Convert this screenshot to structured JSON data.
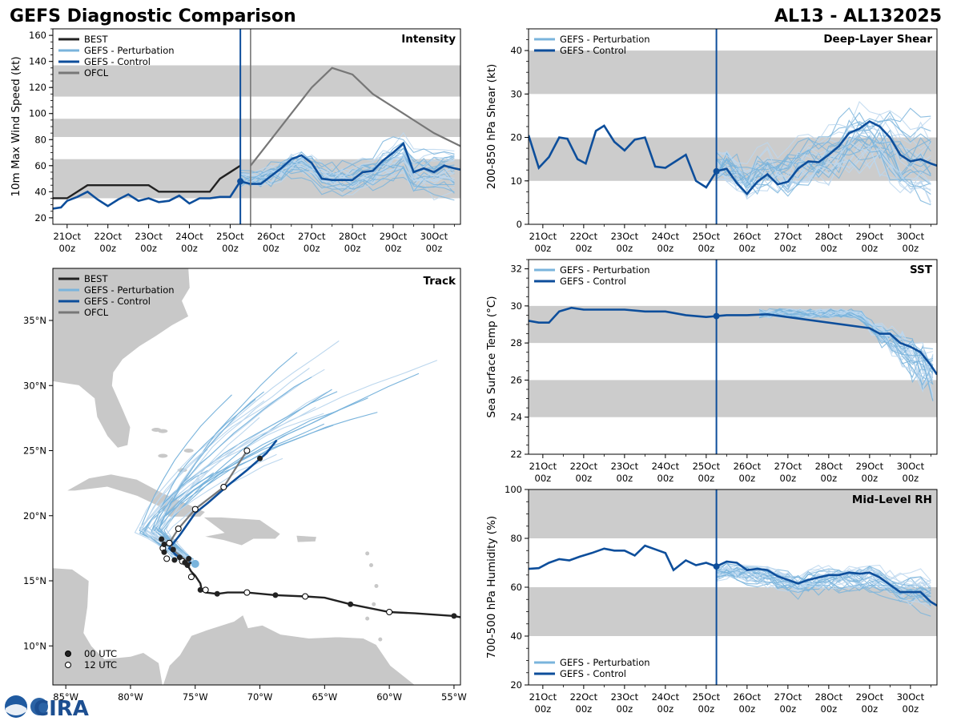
{
  "figure": {
    "title_left": "GEFS Diagnostic Comparison",
    "title_right": "AL13 - AL132025",
    "logo_text": "CIRA"
  },
  "colors": {
    "best": "#222222",
    "perturbation": "#7ab4dc",
    "perturbation_light": "#bcd7ee",
    "control": "#0d4e9b",
    "ofcl": "#777777",
    "band": "#cccccc",
    "land": "#c8c8c8",
    "init_line": "#0d4e9b"
  },
  "time_axis": {
    "tick_labels": [
      [
        "21Oct",
        "00z"
      ],
      [
        "22Oct",
        "00z"
      ],
      [
        "23Oct",
        "00z"
      ],
      [
        "24Oct",
        "00z"
      ],
      [
        "25Oct",
        "00z"
      ],
      [
        "26Oct",
        "00z"
      ],
      [
        "27Oct",
        "00z"
      ],
      [
        "28Oct",
        "00z"
      ],
      [
        "29Oct",
        "00z"
      ],
      [
        "30Oct",
        "00z"
      ]
    ],
    "tick_days": [
      1,
      2,
      3,
      4,
      5,
      6,
      7,
      8,
      9,
      10
    ],
    "range_days": [
      0.65,
      10.65
    ],
    "init_day": 5.25
  },
  "chart_data": [
    {
      "id": "intensity",
      "type": "line",
      "title": "Intensity",
      "ylabel": "10m Max Wind Speed (kt)",
      "ylim": [
        15,
        165
      ],
      "yticks": [
        20,
        40,
        60,
        80,
        100,
        120,
        140,
        160
      ],
      "bands": [
        [
          35,
          65
        ],
        [
          82,
          96
        ],
        [
          113,
          137
        ]
      ],
      "legend": [
        "BEST",
        "GEFS - Perturbation",
        "GEFS - Control",
        "OFCL"
      ],
      "ofcl_init_day": 5.5,
      "best": {
        "x": [
          0.65,
          1.0,
          1.5,
          2.0,
          2.5,
          3.0,
          3.25,
          3.5,
          4.0,
          4.5,
          4.75,
          5.0,
          5.25
        ],
        "y": [
          35,
          35,
          45,
          45,
          45,
          45,
          40,
          40,
          40,
          40,
          50,
          55,
          60
        ]
      },
      "ofcl": {
        "x": [
          5.5,
          6.0,
          6.5,
          7.0,
          7.5,
          8.0,
          8.5,
          9.0,
          9.5,
          10.0,
          10.65
        ],
        "y": [
          60,
          80,
          100,
          120,
          135,
          130,
          115,
          105,
          95,
          85,
          75
        ]
      },
      "control": {
        "x": [
          0.65,
          0.85,
          1.0,
          1.25,
          1.5,
          1.75,
          2.0,
          2.25,
          2.5,
          2.75,
          3.0,
          3.25,
          3.5,
          3.75,
          4.0,
          4.25,
          4.5,
          4.75,
          5.0,
          5.25,
          5.5,
          5.75,
          6.0,
          6.25,
          6.5,
          6.75,
          7.0,
          7.25,
          7.5,
          7.75,
          8.0,
          8.25,
          8.5,
          8.75,
          9.0,
          9.25,
          9.5,
          9.75,
          10.0,
          10.25,
          10.5,
          10.65
        ],
        "y": [
          27,
          28,
          33,
          36,
          40,
          34,
          29,
          34,
          38,
          33,
          35,
          32,
          33,
          37,
          31,
          35,
          35,
          36,
          36,
          48,
          46,
          46,
          52,
          58,
          65,
          68,
          62,
          50,
          49,
          49,
          49,
          55,
          56,
          64,
          70,
          77,
          55,
          58,
          55,
          60,
          58,
          57
        ]
      },
      "perturbation_count": 30,
      "perturbation_range": {
        "start_day": 5.25,
        "end_day": 10.65,
        "center": 55,
        "spread": 18
      }
    },
    {
      "id": "shear",
      "type": "line",
      "title": "Deep-Layer Shear",
      "ylabel": "200-850 hPa Shear (kt)",
      "ylim": [
        0,
        45
      ],
      "yticks": [
        0,
        10,
        20,
        30,
        40
      ],
      "bands": [
        [
          10,
          20
        ],
        [
          30,
          40
        ]
      ],
      "legend": [
        "GEFS - Perturbation",
        "GEFS - Control"
      ],
      "control": {
        "x": [
          0.65,
          0.9,
          1.15,
          1.4,
          1.6,
          1.85,
          2.05,
          2.3,
          2.5,
          2.75,
          3.0,
          3.25,
          3.5,
          3.75,
          4.0,
          4.25,
          4.5,
          4.75,
          5.0,
          5.25,
          5.5,
          5.75,
          6.0,
          6.25,
          6.5,
          6.75,
          7.0,
          7.25,
          7.5,
          7.75,
          8.0,
          8.25,
          8.5,
          8.75,
          9.0,
          9.25,
          9.5,
          9.75,
          10.0,
          10.25,
          10.5,
          10.65
        ],
        "y": [
          20.5,
          13,
          15.5,
          20,
          19.7,
          15,
          14,
          21.5,
          22.7,
          19,
          17,
          19.5,
          20,
          13.3,
          13,
          14.5,
          16,
          10,
          8.5,
          12.2,
          12.8,
          9.5,
          7,
          9.8,
          11.5,
          9.2,
          9.8,
          12.8,
          14.5,
          14.3,
          16,
          18,
          21,
          22,
          23.7,
          22.5,
          20,
          16,
          14.5,
          15,
          14,
          13.5
        ]
      },
      "perturbation_count": 30,
      "perturbation_range": {
        "start_day": 5.25,
        "end_day": 10.65,
        "center": 15,
        "spread": 10
      }
    },
    {
      "id": "sst",
      "type": "line",
      "title": "SST",
      "ylabel": "Sea Surface Temp (°C)",
      "ylim": [
        22,
        32.5
      ],
      "yticks": [
        22,
        24,
        26,
        28,
        30,
        32
      ],
      "bands": [
        [
          24,
          26
        ],
        [
          28,
          30
        ]
      ],
      "legend": [
        "GEFS - Perturbation",
        "GEFS - Control"
      ],
      "control": {
        "x": [
          0.65,
          0.9,
          1.15,
          1.4,
          1.7,
          2.0,
          2.3,
          2.6,
          3.0,
          3.5,
          4.0,
          4.5,
          5.0,
          5.25,
          5.5,
          6.0,
          6.5,
          9.0,
          9.25,
          9.5,
          9.75,
          10.0,
          10.25,
          10.5,
          10.65
        ],
        "y": [
          29.2,
          29.1,
          29.1,
          29.7,
          29.9,
          29.8,
          29.8,
          29.8,
          29.8,
          29.7,
          29.7,
          29.5,
          29.4,
          29.45,
          29.5,
          29.5,
          29.55,
          28.8,
          28.5,
          28.5,
          28.0,
          27.8,
          27.5,
          26.8,
          26.3
        ]
      },
      "perturbation_count": 30,
      "perturbation_range": {
        "start_day": 6.3,
        "end_day": 10.65,
        "center": 29.5,
        "spread": 1.5
      }
    },
    {
      "id": "rh",
      "type": "line",
      "title": "Mid-Level RH",
      "ylabel": "700-500 hPa Humidity (%)",
      "ylim": [
        20,
        100
      ],
      "yticks": [
        20,
        40,
        60,
        80,
        100
      ],
      "bands": [
        [
          40,
          60
        ],
        [
          80,
          100
        ]
      ],
      "legend": [
        "GEFS - Perturbation",
        "GEFS - Control"
      ],
      "control": {
        "x": [
          0.65,
          0.9,
          1.15,
          1.4,
          1.65,
          1.9,
          2.2,
          2.5,
          2.75,
          3.0,
          3.25,
          3.5,
          3.75,
          4.0,
          4.2,
          4.5,
          4.75,
          5.0,
          5.25,
          5.5,
          5.75,
          6.0,
          6.25,
          6.5,
          6.75,
          7.0,
          7.25,
          7.5,
          7.75,
          8.0,
          8.25,
          8.5,
          8.75,
          9.0,
          9.25,
          9.5,
          9.75,
          10.0,
          10.25,
          10.5,
          10.65
        ],
        "y": [
          67.5,
          67.8,
          70,
          71.5,
          71,
          72.5,
          74,
          75.8,
          75,
          75,
          73,
          77,
          75.5,
          74,
          67,
          71,
          69,
          70,
          68.5,
          70.5,
          70,
          67,
          67.5,
          67,
          64.5,
          63,
          61.5,
          63,
          64,
          65,
          65,
          66,
          65.5,
          66,
          64,
          61,
          58,
          58,
          58,
          54,
          52.5
        ]
      },
      "perturbation_count": 30,
      "perturbation_range": {
        "start_day": 5.25,
        "end_day": 10.65,
        "center": 62,
        "spread": 10
      }
    },
    {
      "id": "track",
      "type": "line",
      "title": "Track",
      "legend": [
        "BEST",
        "GEFS - Perturbation",
        "GEFS - Control",
        "OFCL"
      ],
      "marker_legend": [
        "00 UTC",
        "12 UTC"
      ],
      "xlim": [
        -86,
        -54.5
      ],
      "ylim": [
        7,
        39
      ],
      "xticks": [
        -85,
        -80,
        -75,
        -70,
        -65,
        -60,
        -55
      ],
      "xtick_labels": [
        "85°W",
        "80°W",
        "75°W",
        "70°W",
        "65°W",
        "60°W",
        "55°W"
      ],
      "yticks": [
        10,
        15,
        20,
        25,
        30,
        35
      ],
      "ytick_labels": [
        "10°N",
        "15°N",
        "20°N",
        "25°N",
        "30°N",
        "35°N"
      ],
      "best": {
        "lon": [
          -54.5,
          -55,
          -58,
          -60,
          -63,
          -65,
          -66.5,
          -68.8,
          -71,
          -72.5,
          -73.3,
          -74.2,
          -74.5,
          -74.6,
          -75.0,
          -75.3,
          -75.6,
          -75.3
        ],
        "lat": [
          12.2,
          12.3,
          12.5,
          12.6,
          13.2,
          13.7,
          13.8,
          13.9,
          14.1,
          14.1,
          14.0,
          14.1,
          14.3,
          14.8,
          15.4,
          15.7,
          16.2,
          16.4
        ]
      },
      "best_00utc": {
        "lon": [
          -55,
          -63,
          -68.8,
          -73.3,
          -74.6,
          -75.6,
          -76.2,
          -76.6,
          -77.4,
          -76.7,
          -77.4,
          -77.6,
          -75.5,
          -75.8
        ],
        "lat": [
          12.3,
          13.2,
          13.9,
          14.0,
          14.3,
          16.2,
          16.8,
          16.6,
          17.2,
          17.4,
          17.8,
          18.2,
          16.7,
          16.4
        ]
      },
      "best_12utc": {
        "lon": [
          -60,
          -66.5,
          -71,
          -74.2,
          -75.3,
          -76.0,
          -77.2,
          -77.5,
          -77.0
        ],
        "lat": [
          12.6,
          13.8,
          14.1,
          14.3,
          15.3,
          16.5,
          16.7,
          17.5,
          17.9
        ]
      },
      "control": {
        "lon": [
          -75.0,
          -75.8,
          -76.5,
          -77.0,
          -76.2,
          -75.0,
          -74.0,
          -72.5,
          -71.0,
          -69.5,
          -68.7
        ],
        "lat": [
          16.3,
          16.5,
          17.0,
          17.5,
          18.5,
          20.2,
          21.0,
          22.3,
          23.5,
          24.8,
          25.8
        ]
      },
      "ofcl": {
        "lon": [
          -75.5,
          -76.5,
          -77.0,
          -76.3,
          -75.0,
          -72.8,
          -71.0
        ],
        "lat": [
          16.4,
          17.2,
          17.9,
          19.0,
          20.5,
          22.2,
          25.0
        ]
      },
      "ofcl_points": {
        "lon": [
          -77.0,
          -76.3,
          -75.0,
          -72.8,
          -71.0
        ],
        "lat": [
          17.9,
          19.0,
          20.5,
          22.2,
          25.0
        ]
      },
      "control_point": {
        "lon": -70.0,
        "lat": 24.4
      },
      "perturbation_count": 30,
      "perturbation_fan": {
        "origin_lon": -75.5,
        "origin_lat": 16.4
      }
    }
  ]
}
